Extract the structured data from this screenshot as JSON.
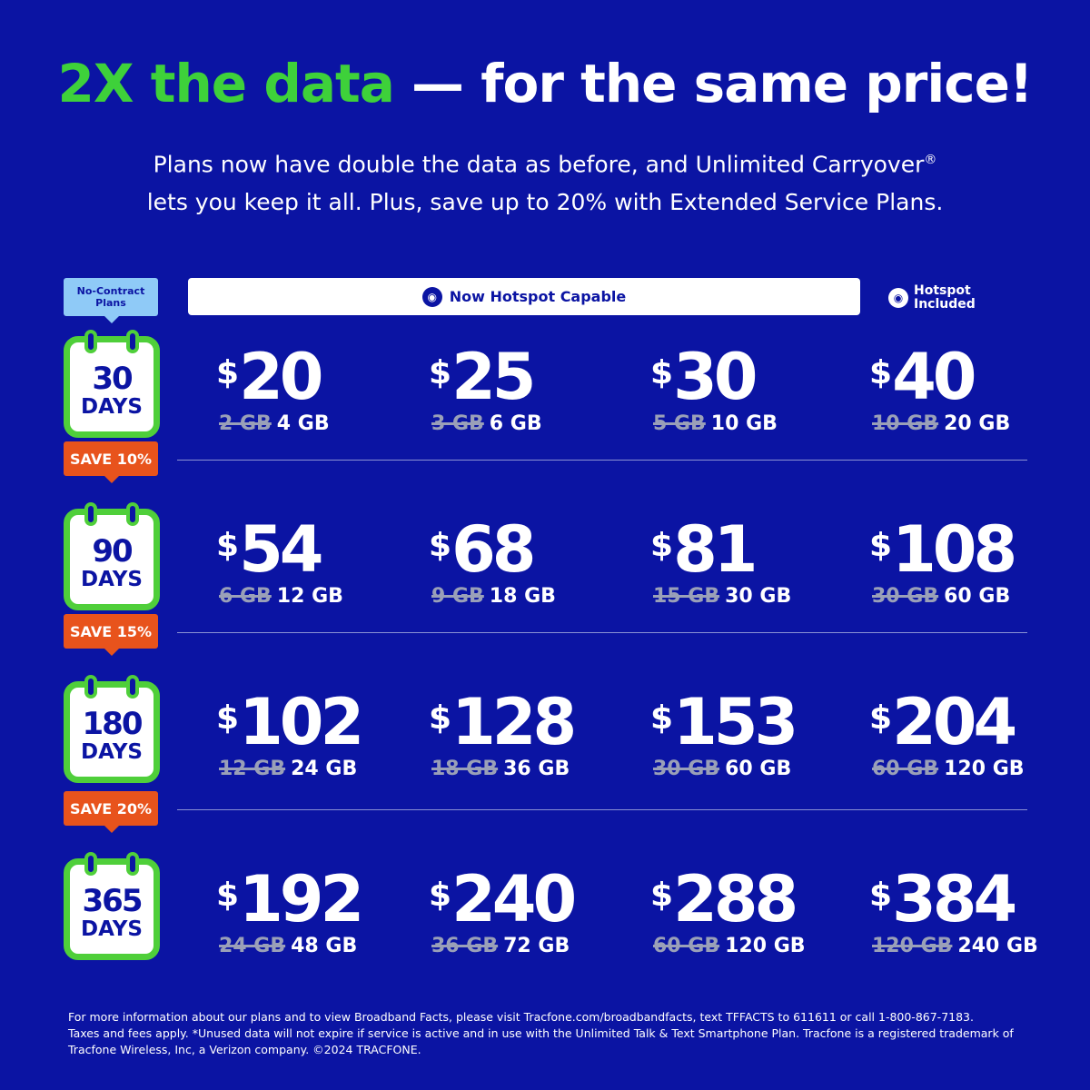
{
  "headline": {
    "green": "2X the data",
    "white": " — for the same price!"
  },
  "subtitle": {
    "line1": "Plans now have double the data as before, and Unlimited Carryover",
    "reg": "®",
    "line2": "lets you keep it all. Plus, save up to 20% with Extended Service Plans."
  },
  "badge_no_contract": "No-Contract Plans",
  "hotspot_bar": {
    "icon": "wifi-icon",
    "label": "Now Hotspot Capable"
  },
  "hotspot_included": {
    "icon": "wifi-icon",
    "label1": "Hotspot",
    "label2": "Included"
  },
  "colors": {
    "background": "#0b14a3",
    "green": "#3ed13a",
    "orange": "#e8531c",
    "light_blue": "#8fcaf7"
  },
  "rows": [
    {
      "days": "30",
      "unit": "DAYS",
      "save": "",
      "plans": [
        {
          "price": "20",
          "old": "2 GB",
          "new": "4 GB"
        },
        {
          "price": "25",
          "old": "3 GB",
          "new": "6 GB"
        },
        {
          "price": "30",
          "old": "5 GB",
          "new": "10 GB"
        },
        {
          "price": "40",
          "old": "10 GB",
          "new": "20 GB"
        }
      ]
    },
    {
      "days": "90",
      "unit": "DAYS",
      "save": "SAVE 10%",
      "plans": [
        {
          "price": "54",
          "old": "6 GB",
          "new": "12 GB"
        },
        {
          "price": "68",
          "old": "9 GB",
          "new": "18 GB"
        },
        {
          "price": "81",
          "old": "15 GB",
          "new": "30 GB"
        },
        {
          "price": "108",
          "old": "30 GB",
          "new": "60 GB"
        }
      ]
    },
    {
      "days": "180",
      "unit": "DAYS",
      "save": "SAVE 15%",
      "plans": [
        {
          "price": "102",
          "old": "12 GB",
          "new": "24 GB"
        },
        {
          "price": "128",
          "old": "18 GB",
          "new": "36 GB"
        },
        {
          "price": "153",
          "old": "30 GB",
          "new": "60 GB"
        },
        {
          "price": "204",
          "old": "60 GB",
          "new": "120 GB"
        }
      ]
    },
    {
      "days": "365",
      "unit": "DAYS",
      "save": "SAVE 20%",
      "plans": [
        {
          "price": "192",
          "old": "24 GB",
          "new": "48 GB"
        },
        {
          "price": "240",
          "old": "36 GB",
          "new": "72 GB"
        },
        {
          "price": "288",
          "old": "60 GB",
          "new": "120 GB"
        },
        {
          "price": "384",
          "old": "120 GB",
          "new": "240 GB"
        }
      ]
    }
  ],
  "footer": {
    "line1": "For more information about our plans and to view Broadband Facts, please visit Tracfone.com/broadbandfacts, text TFFACTS to 611611 or call 1-800-867-7183.",
    "line2": "Taxes and fees apply. *Unused data will not expire if service is active and in use with the Unlimited Talk & Text Smartphone Plan. Tracfone is a registered trademark of Tracfone Wireless, Inc, a Verizon company. ©2024 TRACFONE."
  }
}
